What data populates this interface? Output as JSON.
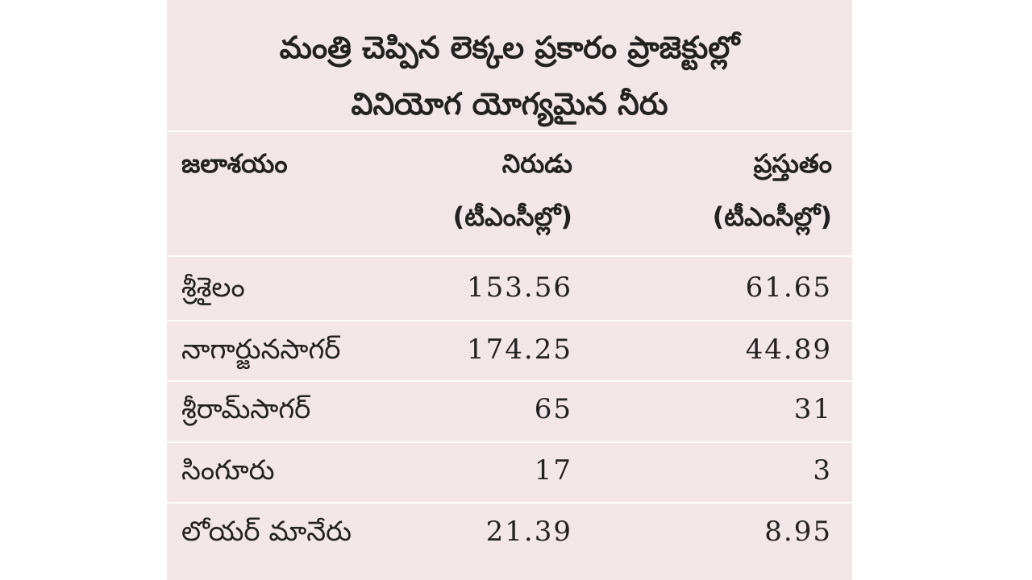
{
  "header": {
    "title": [
      "మంత్రి చెప్పిన లెక్కల ప్రకారం ప్రాజెక్టుల్లో",
      "వినియోగ యోగ్యమైన నీరు"
    ]
  },
  "table": {
    "columns": [
      [
        "జలాశయం"
      ],
      [
        "నిరుడు",
        "(టీఎంసీల్లో)"
      ],
      [
        "ప్రస్తుతం",
        "(టీఎంసీల్లో)"
      ]
    ],
    "rows": [
      [
        "శ్రీశైలం",
        "153.56",
        "61.65"
      ],
      [
        "నాగార్జునసాగర్",
        "174.25",
        "44.89"
      ],
      [
        "శ్రీరామ్‌సాగర్",
        "65",
        "31"
      ],
      [
        "సింగూరు",
        "17",
        "3"
      ],
      [
        "లోయర్ మానేరు",
        "21.39",
        "8.95"
      ]
    ]
  }
}
